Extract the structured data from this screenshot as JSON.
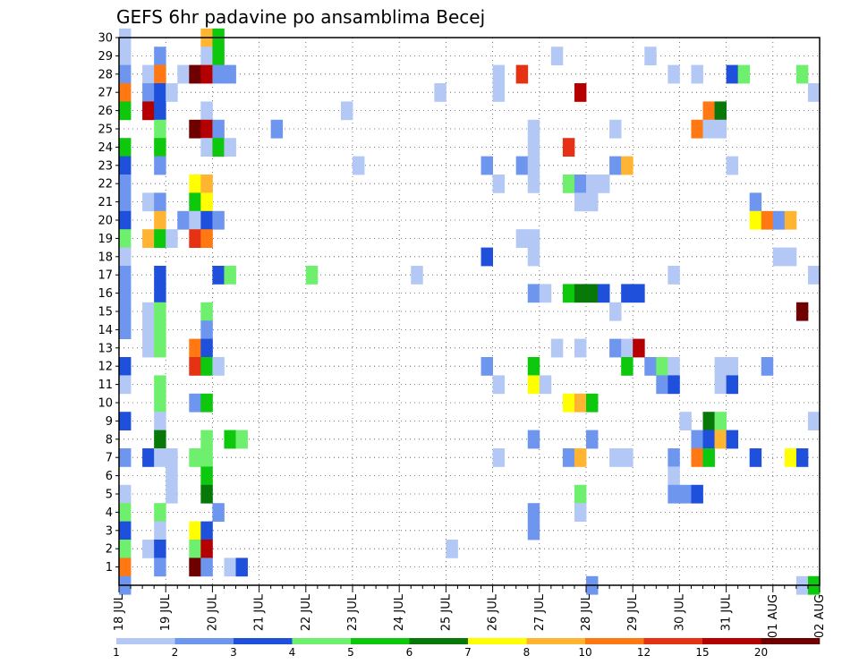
{
  "chart_data": {
    "type": "heatmap",
    "title": "GEFS 6hr padavine po ansamblima Becej",
    "xlabel": "",
    "ylabel": "",
    "x_ticks": [
      "18 JUL",
      "19 JUL",
      "20 JUL",
      "21 JUL",
      "22 JUL",
      "23 JUL",
      "24 JUL",
      "25 JUL",
      "26 JUL",
      "27 JUL",
      "28 JUL",
      "29 JUL",
      "30 JUL",
      "31 JUL",
      "01 AUG",
      "02 AUG"
    ],
    "y_ticks": [
      1,
      2,
      3,
      4,
      5,
      6,
      7,
      8,
      9,
      10,
      11,
      12,
      13,
      14,
      15,
      16,
      17,
      18,
      19,
      20,
      21,
      22,
      23,
      24,
      25,
      26,
      27,
      28,
      29,
      30
    ],
    "ylim": [
      0,
      30
    ],
    "x_steps_per_day": 4,
    "total_steps": 60,
    "grid": true,
    "legend_placement": "bottom",
    "color_scale": {
      "levels": [
        1,
        2,
        3,
        4,
        5,
        6,
        7,
        8,
        10,
        12,
        15,
        20
      ],
      "colors": [
        "#b4c8f5",
        "#6e96ee",
        "#1e50dc",
        "#6ef06e",
        "#0ec80e",
        "#087808",
        "#ffff00",
        "#ffb432",
        "#ff7814",
        "#e63214",
        "#b40000",
        "#6e0000"
      ]
    },
    "cells": [
      [
        0,
        30,
        1
      ],
      [
        7,
        30,
        8
      ],
      [
        8,
        30,
        5
      ],
      [
        0,
        29,
        1
      ],
      [
        3,
        29,
        2
      ],
      [
        7,
        29,
        1
      ],
      [
        8,
        29,
        5
      ],
      [
        37,
        29,
        1
      ],
      [
        45,
        29,
        1
      ],
      [
        0,
        28,
        2
      ],
      [
        2,
        28,
        1
      ],
      [
        3,
        28,
        9
      ],
      [
        5,
        28,
        1
      ],
      [
        6,
        28,
        12
      ],
      [
        7,
        28,
        11
      ],
      [
        8,
        28,
        2
      ],
      [
        9,
        28,
        2
      ],
      [
        32,
        28,
        1
      ],
      [
        34,
        28,
        10
      ],
      [
        47,
        28,
        1
      ],
      [
        49,
        28,
        1
      ],
      [
        52,
        28,
        3
      ],
      [
        53,
        28,
        4
      ],
      [
        58,
        28,
        4
      ],
      [
        0,
        27,
        9
      ],
      [
        2,
        27,
        2
      ],
      [
        3,
        27,
        3
      ],
      [
        4,
        27,
        1
      ],
      [
        27,
        27,
        1
      ],
      [
        32,
        27,
        1
      ],
      [
        39,
        27,
        11
      ],
      [
        59,
        27,
        1
      ],
      [
        0,
        26,
        5
      ],
      [
        2,
        26,
        11
      ],
      [
        3,
        26,
        3
      ],
      [
        7,
        26,
        1
      ],
      [
        19,
        26,
        1
      ],
      [
        50,
        26,
        9
      ],
      [
        51,
        26,
        6
      ],
      [
        3,
        25,
        4
      ],
      [
        6,
        25,
        12
      ],
      [
        7,
        25,
        11
      ],
      [
        8,
        25,
        2
      ],
      [
        13,
        25,
        2
      ],
      [
        35,
        25,
        1
      ],
      [
        42,
        25,
        1
      ],
      [
        49,
        25,
        9
      ],
      [
        50,
        25,
        1
      ],
      [
        51,
        25,
        1
      ],
      [
        0,
        24,
        5
      ],
      [
        3,
        24,
        5
      ],
      [
        7,
        24,
        1
      ],
      [
        8,
        24,
        5
      ],
      [
        9,
        24,
        1
      ],
      [
        35,
        24,
        1
      ],
      [
        38,
        24,
        10
      ],
      [
        0,
        23,
        3
      ],
      [
        3,
        23,
        2
      ],
      [
        20,
        23,
        1
      ],
      [
        31,
        23,
        2
      ],
      [
        34,
        23,
        2
      ],
      [
        35,
        23,
        1
      ],
      [
        42,
        23,
        2
      ],
      [
        43,
        23,
        8
      ],
      [
        52,
        23,
        1
      ],
      [
        0,
        22,
        2
      ],
      [
        6,
        22,
        7
      ],
      [
        7,
        22,
        8
      ],
      [
        32,
        22,
        1
      ],
      [
        35,
        22,
        1
      ],
      [
        38,
        22,
        4
      ],
      [
        39,
        22,
        2
      ],
      [
        40,
        22,
        1
      ],
      [
        41,
        22,
        1
      ],
      [
        0,
        21,
        2
      ],
      [
        2,
        21,
        1
      ],
      [
        3,
        21,
        2
      ],
      [
        6,
        21,
        5
      ],
      [
        7,
        21,
        7
      ],
      [
        39,
        21,
        1
      ],
      [
        40,
        21,
        1
      ],
      [
        54,
        21,
        2
      ],
      [
        0,
        20,
        3
      ],
      [
        3,
        20,
        8
      ],
      [
        5,
        20,
        2
      ],
      [
        6,
        20,
        1
      ],
      [
        7,
        20,
        3
      ],
      [
        8,
        20,
        2
      ],
      [
        54,
        20,
        7
      ],
      [
        55,
        20,
        9
      ],
      [
        56,
        20,
        2
      ],
      [
        57,
        20,
        8
      ],
      [
        0,
        19,
        4
      ],
      [
        2,
        19,
        8
      ],
      [
        3,
        19,
        5
      ],
      [
        4,
        19,
        1
      ],
      [
        6,
        19,
        10
      ],
      [
        7,
        19,
        9
      ],
      [
        34,
        19,
        1
      ],
      [
        35,
        19,
        1
      ],
      [
        0,
        18,
        1
      ],
      [
        31,
        18,
        3
      ],
      [
        35,
        18,
        1
      ],
      [
        56,
        18,
        1
      ],
      [
        57,
        18,
        1
      ],
      [
        0,
        17,
        2
      ],
      [
        3,
        17,
        3
      ],
      [
        8,
        17,
        3
      ],
      [
        9,
        17,
        4
      ],
      [
        16,
        17,
        4
      ],
      [
        25,
        17,
        1
      ],
      [
        47,
        17,
        1
      ],
      [
        59,
        17,
        1
      ],
      [
        0,
        16,
        2
      ],
      [
        3,
        16,
        3
      ],
      [
        35,
        16,
        2
      ],
      [
        36,
        16,
        1
      ],
      [
        38,
        16,
        5
      ],
      [
        39,
        16,
        6
      ],
      [
        40,
        16,
        6
      ],
      [
        41,
        16,
        3
      ],
      [
        43,
        16,
        3
      ],
      [
        44,
        16,
        3
      ],
      [
        0,
        15,
        2
      ],
      [
        2,
        15,
        1
      ],
      [
        3,
        15,
        4
      ],
      [
        7,
        15,
        4
      ],
      [
        42,
        15,
        1
      ],
      [
        58,
        15,
        12
      ],
      [
        0,
        14,
        2
      ],
      [
        2,
        14,
        1
      ],
      [
        3,
        14,
        4
      ],
      [
        7,
        14,
        2
      ],
      [
        2,
        13,
        1
      ],
      [
        3,
        13,
        4
      ],
      [
        6,
        13,
        9
      ],
      [
        7,
        13,
        3
      ],
      [
        37,
        13,
        1
      ],
      [
        39,
        13,
        1
      ],
      [
        42,
        13,
        2
      ],
      [
        43,
        13,
        1
      ],
      [
        44,
        13,
        11
      ],
      [
        0,
        12,
        3
      ],
      [
        6,
        12,
        10
      ],
      [
        7,
        12,
        5
      ],
      [
        8,
        12,
        1
      ],
      [
        31,
        12,
        2
      ],
      [
        35,
        12,
        5
      ],
      [
        43,
        12,
        5
      ],
      [
        45,
        12,
        2
      ],
      [
        46,
        12,
        4
      ],
      [
        47,
        12,
        1
      ],
      [
        51,
        12,
        1
      ],
      [
        52,
        12,
        1
      ],
      [
        55,
        12,
        2
      ],
      [
        0,
        11,
        1
      ],
      [
        3,
        11,
        4
      ],
      [
        32,
        11,
        1
      ],
      [
        35,
        11,
        7
      ],
      [
        36,
        11,
        1
      ],
      [
        46,
        11,
        2
      ],
      [
        47,
        11,
        3
      ],
      [
        51,
        11,
        1
      ],
      [
        52,
        11,
        3
      ],
      [
        3,
        10,
        4
      ],
      [
        6,
        10,
        2
      ],
      [
        7,
        10,
        5
      ],
      [
        38,
        10,
        7
      ],
      [
        39,
        10,
        8
      ],
      [
        40,
        10,
        5
      ],
      [
        0,
        9,
        3
      ],
      [
        3,
        9,
        1
      ],
      [
        48,
        9,
        1
      ],
      [
        50,
        9,
        6
      ],
      [
        51,
        9,
        4
      ],
      [
        59,
        9,
        1
      ],
      [
        3,
        8,
        6
      ],
      [
        7,
        8,
        4
      ],
      [
        9,
        8,
        5
      ],
      [
        10,
        8,
        4
      ],
      [
        35,
        8,
        2
      ],
      [
        40,
        8,
        2
      ],
      [
        49,
        8,
        2
      ],
      [
        50,
        8,
        3
      ],
      [
        51,
        8,
        8
      ],
      [
        52,
        8,
        3
      ],
      [
        0,
        7,
        2
      ],
      [
        2,
        7,
        3
      ],
      [
        3,
        7,
        1
      ],
      [
        4,
        7,
        1
      ],
      [
        6,
        7,
        4
      ],
      [
        7,
        7,
        4
      ],
      [
        32,
        7,
        1
      ],
      [
        38,
        7,
        2
      ],
      [
        39,
        7,
        8
      ],
      [
        42,
        7,
        1
      ],
      [
        43,
        7,
        1
      ],
      [
        47,
        7,
        2
      ],
      [
        49,
        7,
        9
      ],
      [
        50,
        7,
        5
      ],
      [
        54,
        7,
        3
      ],
      [
        57,
        7,
        7
      ],
      [
        58,
        7,
        3
      ],
      [
        4,
        6,
        1
      ],
      [
        7,
        6,
        5
      ],
      [
        47,
        6,
        1
      ],
      [
        0,
        5,
        1
      ],
      [
        4,
        5,
        1
      ],
      [
        7,
        5,
        6
      ],
      [
        39,
        5,
        4
      ],
      [
        47,
        5,
        2
      ],
      [
        48,
        5,
        2
      ],
      [
        49,
        5,
        3
      ],
      [
        0,
        4,
        4
      ],
      [
        3,
        4,
        4
      ],
      [
        8,
        4,
        2
      ],
      [
        35,
        4,
        2
      ],
      [
        39,
        4,
        1
      ],
      [
        0,
        3,
        3
      ],
      [
        3,
        3,
        1
      ],
      [
        6,
        3,
        7
      ],
      [
        7,
        3,
        3
      ],
      [
        35,
        3,
        2
      ],
      [
        0,
        2,
        4
      ],
      [
        2,
        2,
        1
      ],
      [
        3,
        2,
        3
      ],
      [
        6,
        2,
        4
      ],
      [
        7,
        2,
        11
      ],
      [
        28,
        2,
        1
      ],
      [
        0,
        1,
        9
      ],
      [
        3,
        1,
        2
      ],
      [
        6,
        1,
        12
      ],
      [
        7,
        1,
        2
      ],
      [
        9,
        1,
        1
      ],
      [
        10,
        1,
        3
      ],
      [
        0,
        0,
        2
      ],
      [
        40,
        0,
        2
      ],
      [
        58,
        0,
        1
      ],
      [
        59,
        0,
        5
      ]
    ]
  }
}
